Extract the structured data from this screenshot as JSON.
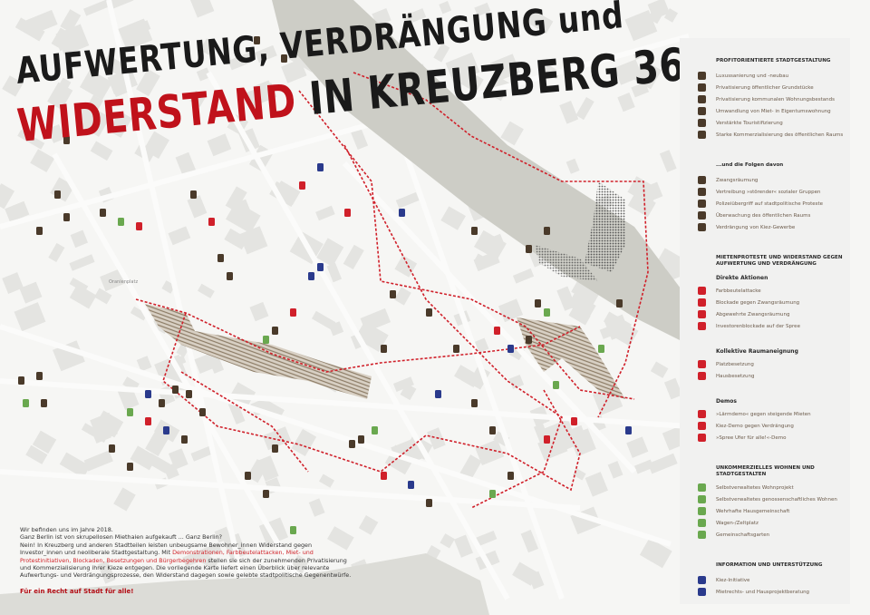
{
  "title": {
    "line1": "AUFWERTUNG, VERDRÄNGUNG und",
    "line2_red": "WIDERSTAND",
    "line2_black": " IN KREUZBERG 36"
  },
  "map": {
    "place_labels": [
      "Oranienplatz"
    ],
    "colors": {
      "river": "#cdcdc6",
      "demo_route": "#d0202a",
      "hatch": "#8c7c66",
      "icon_brown": "#4a3a2a",
      "icon_red": "#d0202a",
      "icon_green": "#6aa84f",
      "icon_blue": "#2a3a8c"
    }
  },
  "legend": {
    "sections": [
      {
        "heading": "PROFITORIENTIERTE STADTGESTALTUNG",
        "items": [
          {
            "icon": "luxury-building-icon",
            "label": "Luxussanierung und -neubau"
          },
          {
            "icon": "privatization-land-icon",
            "label": "Privatisierung öffentlicher Grundstücke"
          },
          {
            "icon": "privatization-housing-icon",
            "label": "Privatisierung kommunalen Wohnungsbestands"
          },
          {
            "icon": "conversion-icon",
            "label": "Umwandlung von Miet- in Eigentumswohnung"
          },
          {
            "icon": "tourism-hatch-icon",
            "label": "Verstärkte Touristifizierung"
          },
          {
            "icon": "commercialization-dots-icon",
            "label": "Starke Kommerzialisierung des öffentlichen Raums"
          }
        ]
      },
      {
        "heading": "...und die Folgen davon",
        "items": [
          {
            "icon": "eviction-icon",
            "label": "Zwangsräumung"
          },
          {
            "icon": "displacement-icon",
            "label": "Vertreibung »störender« sozialer Gruppen"
          },
          {
            "icon": "police-icon",
            "label": "Polizeiübergriff auf stadtpolitische Proteste"
          },
          {
            "icon": "eye-icon",
            "label": "Überwachung des öffentlichen Raums"
          },
          {
            "icon": "shop-icon",
            "label": "Verdrängung von Kiez-Gewerbe"
          }
        ]
      },
      {
        "heading": "MIETENPROTESTE UND WIDERSTAND GEGEN AUFWERTUNG UND VERDRÄNGUNG",
        "subsections": [
          {
            "title": "Direkte Aktionen",
            "items": [
              {
                "icon": "paint-attack-icon",
                "label": "Farbbeutelattacke"
              },
              {
                "icon": "blockade-icon",
                "label": "Blockade gegen Zwangsräumung"
              },
              {
                "icon": "prevented-eviction-icon",
                "label": "Abgewehrte Zwangsräumung"
              },
              {
                "icon": "investor-blockade-icon",
                "label": "Investorenblockade auf der Spree"
              }
            ]
          },
          {
            "title": "Kollektive Raumaneignung",
            "items": [
              {
                "icon": "square-occupation-icon",
                "label": "Platzbesetzung"
              },
              {
                "icon": "house-occupation-icon",
                "label": "Hausbesetzung"
              }
            ]
          },
          {
            "title": "Demos",
            "items": [
              {
                "icon": "noise-demo-icon",
                "label": "»Lärmdemo« gegen steigende Mieten"
              },
              {
                "icon": "megaphone-icon",
                "label": "Kiez-Demo gegen Verdrängung"
              },
              {
                "icon": "spree-demo-icon",
                "label": "»Spree Ufer für alle!«-Demo"
              }
            ]
          }
        ]
      },
      {
        "heading": "UNKOMMERZIELLES WOHNEN UND STADTGESTALTEN",
        "items": [
          {
            "icon": "self-managed-icon",
            "label": "Selbstverwaltetes Wohnprojekt"
          },
          {
            "icon": "cooperative-icon",
            "label": "Selbstverwaltetes genossenschaftliches Wohnen"
          },
          {
            "icon": "defensive-house-icon",
            "label": "Wehrhafte Hausgemeinschaft"
          },
          {
            "icon": "trailer-icon",
            "label": "Wagen-/Zeltplatz"
          },
          {
            "icon": "garden-icon",
            "label": "Gemeinschaftsgarten"
          }
        ]
      },
      {
        "heading": "INFORMATION UND UNTERSTÜTZUNG",
        "items": [
          {
            "icon": "initiative-icon",
            "label": "Kiez-Initiative"
          },
          {
            "icon": "counseling-icon",
            "label": "Mietrechts- und Hausprojektberatung"
          }
        ]
      }
    ]
  },
  "intro": {
    "p1": "Wir befinden uns im Jahre 2018.",
    "p2": "Ganz Berlin ist von skrupellosen Miethaien aufgekauft ... Ganz Berlin?",
    "p3a": "Nein! In Kreuzberg und anderen Stadtteilen leisten unbeugsame Bewohner_innen Widerstand gegen Investor_innen und neoliberale Stadtgestaltung. Mit ",
    "p3_highlight": "Demonstrationen, Farbbeutelattacken, Miet- und Protestinitiativen, Blockaden, Besetzungen und Bürgerbegehren",
    "p3b": " stellen sie sich der zunehmenden Privatisierung und Kommerzialisierung ihrer Kieze entgegen. Die vorliegende Karte liefert einen Überblick über relevante Aufwertungs- und Verdrängungsprozesse, den Widerstand dagegen sowie gelebte stadtpolitische Gegenentwürfe.",
    "slogan": "Für ein Recht auf Stadt für alle!"
  }
}
